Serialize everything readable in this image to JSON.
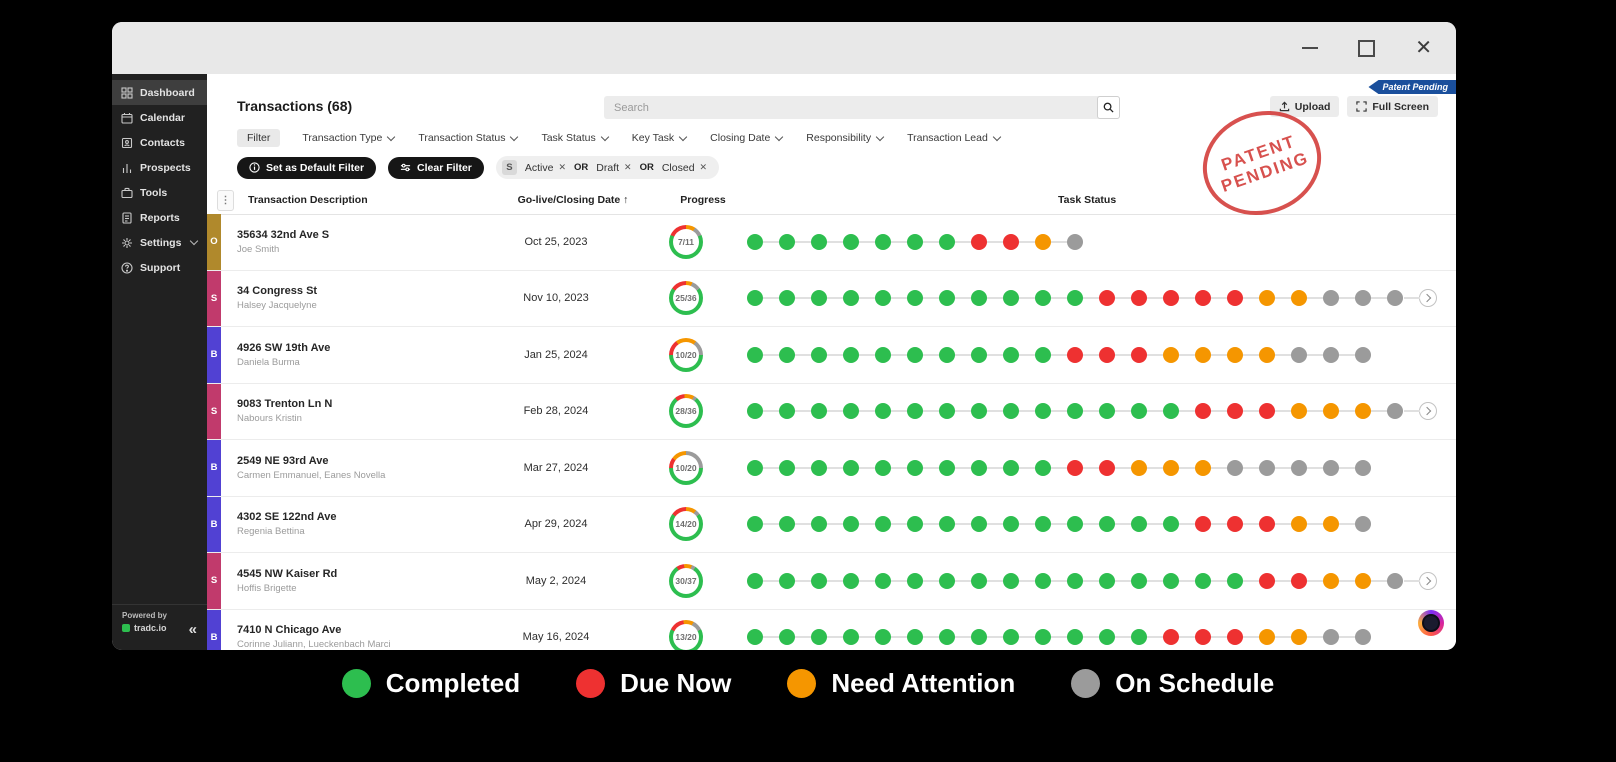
{
  "ribbon_label": "Patent Pending",
  "stamp": {
    "line1": "PATENT",
    "line2": "PENDING"
  },
  "sidebar": {
    "items": [
      {
        "icon": "dashboard-grid-icon",
        "label": "Dashboard",
        "active": true
      },
      {
        "icon": "calendar-icon",
        "label": "Calendar",
        "active": false
      },
      {
        "icon": "contacts-icon",
        "label": "Contacts",
        "active": false
      },
      {
        "icon": "prospects-chart-icon",
        "label": "Prospects",
        "active": false
      },
      {
        "icon": "tools-icon",
        "label": "Tools",
        "active": false
      },
      {
        "icon": "reports-icon",
        "label": "Reports",
        "active": false
      },
      {
        "icon": "settings-gear-icon",
        "label": "Settings",
        "active": false,
        "chevron": true
      },
      {
        "icon": "support-icon",
        "label": "Support",
        "active": false
      }
    ],
    "powered_by": "Powered by",
    "brand": "tradc.io"
  },
  "header": {
    "title": "Transactions (68)",
    "search_placeholder": "Search",
    "upload_label": "Upload",
    "fullscreen_label": "Full Screen"
  },
  "filterbar": {
    "filter_chip": "Filter",
    "dropdowns": [
      "Transaction Type",
      "Transaction Status",
      "Task Status",
      "Key Task",
      "Closing Date",
      "Responsibility",
      "Transaction Lead"
    ],
    "set_default_label": "Set as Default Filter",
    "clear_label": "Clear Filter",
    "applied": {
      "prefix": "S",
      "or_label": "OR",
      "values": [
        "Active",
        "Draft",
        "Closed"
      ]
    }
  },
  "table": {
    "headers": {
      "description": "Transaction Description",
      "date": "Go-live/Closing Date",
      "sort_arrow": "↑",
      "progress": "Progress",
      "task_status": "Task Status"
    },
    "rows": [
      {
        "tag": "O",
        "tag_color": "#b0892c",
        "title": "35634 32nd Ave S",
        "subtitle": "Joe Smith",
        "date": "Oct 25, 2023",
        "progress_label": "7/11",
        "completed": 7,
        "total": 11,
        "dots": {
          "green": 7,
          "red": 2,
          "orange": 1,
          "gray": 1
        },
        "more": false
      },
      {
        "tag": "S",
        "tag_color": "#c13a6c",
        "title": "34 Congress St",
        "subtitle": "Halsey Jacquelyne",
        "date": "Nov 10, 2023",
        "progress_label": "25/36",
        "completed": 25,
        "total": 36,
        "dots": {
          "green": 11,
          "red": 5,
          "orange": 2,
          "gray": 3
        },
        "more": true
      },
      {
        "tag": "B",
        "tag_color": "#5141d3",
        "title": "4926 SW 19th Ave",
        "subtitle": "Daniela Burma",
        "date": "Jan 25, 2024",
        "progress_label": "10/20",
        "completed": 10,
        "total": 20,
        "dots": {
          "green": 10,
          "red": 3,
          "orange": 4,
          "gray": 3
        },
        "more": false
      },
      {
        "tag": "S",
        "tag_color": "#c13a6c",
        "title": "9083 Trenton Ln N",
        "subtitle": "Nabours Kristin",
        "date": "Feb 28, 2024",
        "progress_label": "28/36",
        "completed": 28,
        "total": 36,
        "dots": {
          "green": 14,
          "red": 3,
          "orange": 3,
          "gray": 1
        },
        "more": true
      },
      {
        "tag": "B",
        "tag_color": "#5141d3",
        "title": "2549 NE 93rd Ave",
        "subtitle": "Carmen Emmanuel, Eanes Novella",
        "date": "Mar 27, 2024",
        "progress_label": "10/20",
        "completed": 10,
        "total": 20,
        "dots": {
          "green": 10,
          "red": 2,
          "orange": 3,
          "gray": 5
        },
        "more": false
      },
      {
        "tag": "B",
        "tag_color": "#5141d3",
        "title": "4302 SE 122nd Ave",
        "subtitle": "Regenia Bettina",
        "date": "Apr 29, 2024",
        "progress_label": "14/20",
        "completed": 14,
        "total": 20,
        "dots": {
          "green": 14,
          "red": 3,
          "orange": 2,
          "gray": 1
        },
        "more": false
      },
      {
        "tag": "S",
        "tag_color": "#c13a6c",
        "title": "4545 NW Kaiser Rd",
        "subtitle": "Hoffis Brigette",
        "date": "May 2, 2024",
        "progress_label": "30/37",
        "completed": 30,
        "total": 37,
        "dots": {
          "green": 16,
          "red": 2,
          "orange": 2,
          "gray": 1
        },
        "more": true
      },
      {
        "tag": "B",
        "tag_color": "#5141d3",
        "title": "7410 N Chicago Ave",
        "subtitle": "Corinne Juliann, Lueckenbach Marci",
        "date": "May 16, 2024",
        "progress_label": "13/20",
        "completed": 13,
        "total": 20,
        "dots": {
          "green": 13,
          "red": 3,
          "orange": 2,
          "gray": 2
        },
        "more": false
      }
    ]
  },
  "legend": [
    {
      "label": "Completed",
      "color": "#2dbe4f"
    },
    {
      "label": "Due Now",
      "color": "#ee3131"
    },
    {
      "label": "Need Attention",
      "color": "#f59600"
    },
    {
      "label": "On Schedule",
      "color": "#9b9b9b"
    }
  ],
  "status_colors": {
    "green": "#2dbe4f",
    "red": "#ee3131",
    "orange": "#f59600",
    "gray": "#9b9b9b"
  }
}
